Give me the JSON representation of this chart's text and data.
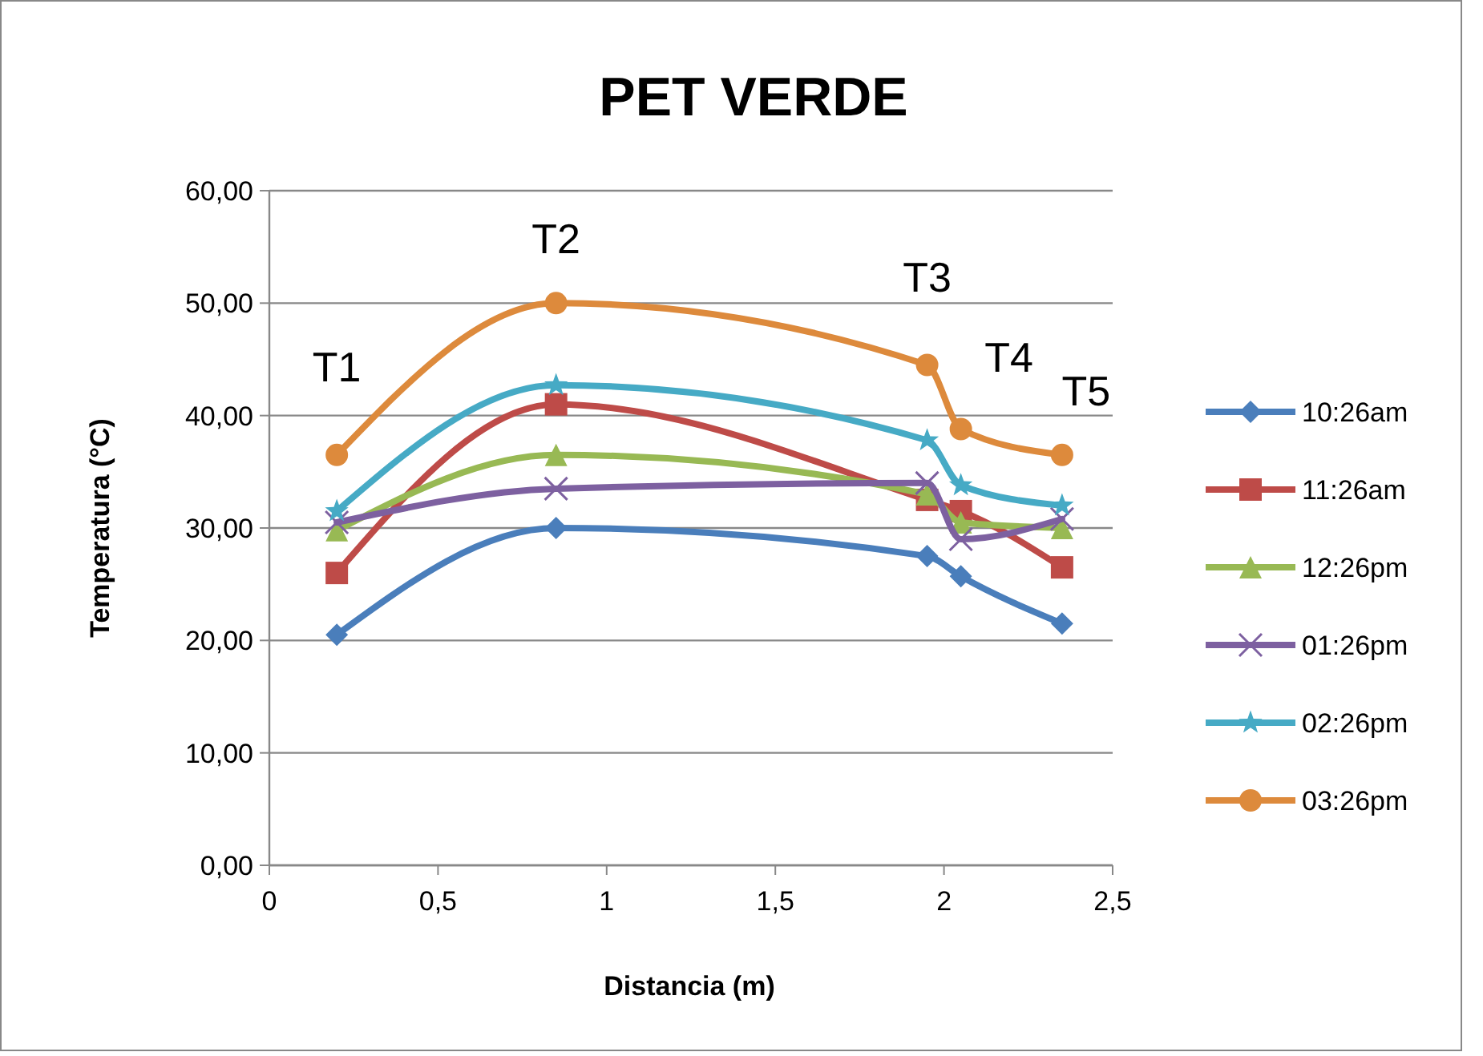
{
  "chart_data": {
    "type": "line",
    "title": "PET VERDE",
    "xlabel": "Distancia  (m)",
    "ylabel": "Temperatura (°C)",
    "x": [
      0.2,
      0.85,
      1.95,
      2.05,
      2.35
    ],
    "xlim": [
      0,
      2.5
    ],
    "xticks": [
      0,
      {
        "value": 0.5,
        "label": "0,5"
      },
      1,
      {
        "value": 1.5,
        "label": "1,5"
      },
      2,
      {
        "value": 2.5,
        "label": "2,5"
      }
    ],
    "ylim": [
      0,
      60
    ],
    "yticks": [
      {
        "value": 0,
        "label": "0,00"
      },
      {
        "value": 10,
        "label": "10,00"
      },
      {
        "value": 20,
        "label": "20,00"
      },
      {
        "value": 30,
        "label": "30,00"
      },
      {
        "value": 40,
        "label": "40,00"
      },
      {
        "value": 50,
        "label": "50,00"
      },
      {
        "value": 60,
        "label": "60,00"
      }
    ],
    "grid": "y",
    "legend": "right",
    "series": [
      {
        "name": "10:26am",
        "color": "#4a7ebb",
        "marker": "diamond",
        "values": [
          20.5,
          30,
          27.5,
          25.7,
          21.5
        ]
      },
      {
        "name": "11:26am",
        "color": "#be4b48",
        "marker": "square",
        "values": [
          26,
          41,
          32.5,
          31.5,
          26.5
        ]
      },
      {
        "name": "12:26pm",
        "color": "#98b954",
        "marker": "triangle",
        "values": [
          29.8,
          36.5,
          33,
          30.5,
          30
        ]
      },
      {
        "name": "01:26pm",
        "color": "#7d60a0",
        "marker": "cross",
        "values": [
          30.5,
          33.5,
          34,
          29,
          30.8
        ]
      },
      {
        "name": "02:26pm",
        "color": "#46aac5",
        "marker": "star",
        "values": [
          31.5,
          42.7,
          37.8,
          33.8,
          32
        ]
      },
      {
        "name": "03:26pm",
        "color": "#dd8a3c",
        "marker": "circle",
        "values": [
          36.5,
          50,
          44.5,
          38.8,
          36.5
        ]
      }
    ],
    "annotations": [
      "T1",
      "T2",
      "T3",
      "T4",
      "T5"
    ]
  }
}
